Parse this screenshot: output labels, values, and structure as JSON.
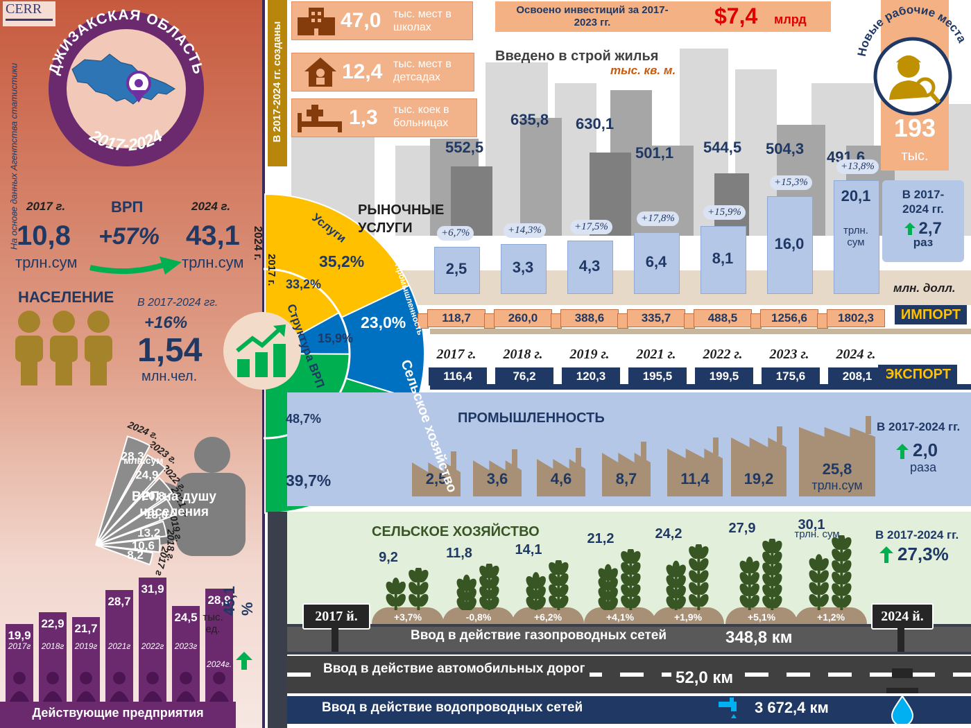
{
  "header": {
    "logo": "CERR",
    "region": "ДЖИЗАКСКАЯ ОБЛАСТЬ",
    "period": "2017-2024",
    "source_note": "На основе данных Агентства статистики"
  },
  "grp": {
    "label": "ВРП",
    "year_start": "2017 г.",
    "year_end": "2024 г.",
    "value_start": "10,8",
    "value_end": "43,1",
    "unit": "трлн.сум",
    "growth": "+57%"
  },
  "population": {
    "label": "НАСЕЛЕНИЕ",
    "period": "В 2017-2024 гг.",
    "growth": "+16%",
    "value": "1,54",
    "unit": "млн.чел."
  },
  "grp_per_capita": {
    "label": "ВРП на душу населения",
    "unit": "млн.сум",
    "items": [
      {
        "year": "2017 г",
        "value": "8,2"
      },
      {
        "year": "2018 г.",
        "value": "10,6"
      },
      {
        "year": "2019 г.",
        "value": "13,2"
      },
      {
        "year": "2021 г.",
        "value": "18,0"
      },
      {
        "year": "2022 г.",
        "value": "20,8"
      },
      {
        "year": "2023 г.",
        "value": "24,9"
      },
      {
        "year": "2024 г.",
        "value": "28,3"
      }
    ]
  },
  "enterprises": {
    "label": "Действующие предприятия",
    "unit": "тыс. ед.",
    "growth": "45,1 %",
    "items": [
      {
        "year": "2017г",
        "value": "19,9",
        "v": 19.9
      },
      {
        "year": "2018г",
        "value": "22,9",
        "v": 22.9
      },
      {
        "year": "2019г",
        "value": "21,7",
        "v": 21.7
      },
      {
        "year": "2021г",
        "value": "28,7",
        "v": 28.7
      },
      {
        "year": "2022г",
        "value": "31,9",
        "v": 31.9
      },
      {
        "year": "2023г",
        "value": "24,5",
        "v": 24.5
      },
      {
        "year": "2024г.",
        "value": "28,9",
        "v": 28.9
      }
    ]
  },
  "grp_structure": {
    "title": "Структура ВРП",
    "year_outer": "2024 г.",
    "year_inner": "2017 г.",
    "sectors": [
      {
        "name": "Услуги",
        "v2024": "35,2%",
        "v2017": "33,2%",
        "color": "#ffc000"
      },
      {
        "name": "Промышленность",
        "v2024": "23,0%",
        "v2017": "15,9%",
        "color": "#0070c0"
      },
      {
        "name": "Сельское хозяйство",
        "v2024": "39,7%",
        "v2017": "48,7%",
        "color": "#00b050"
      }
    ]
  },
  "created": {
    "vertical_label": "В 2017-2024 гг. созданы",
    "items": [
      {
        "icon": "school-icon",
        "value": "47,0",
        "text": "тыс. мест в школах"
      },
      {
        "icon": "kindergarten-icon",
        "value": "12,4",
        "text": "тыс. мест в детсадах"
      },
      {
        "icon": "hospital-bed-icon",
        "value": "1,3",
        "text": "тыс. коек в больницах"
      }
    ]
  },
  "investment": {
    "label": "Освоено инвестиций за 2017-2023 гг.",
    "value": "$7,4",
    "unit": "млрд"
  },
  "jobs": {
    "label": "Новые рабочие места",
    "value": "193",
    "unit": "тыс."
  },
  "housing": {
    "title": "Введено в строй жилья",
    "unit": "тыс. кв. м.",
    "values": [
      "552,5",
      "635,8",
      "630,1",
      "501,1",
      "544,5",
      "504,3",
      "491,6"
    ]
  },
  "chart_data": [
    {
      "type": "bar",
      "title": "РЫНОЧНЫЕ УСЛУГИ",
      "categories": [
        "2017 г.",
        "2018 г.",
        "2019 г.",
        "2021 г.",
        "2022 г.",
        "2023 г.",
        "2024 г."
      ],
      "values": [
        2.5,
        3.3,
        4.3,
        6.4,
        8.1,
        16.0,
        20.1
      ],
      "labels": [
        "2,5",
        "3,3",
        "4,3",
        "6,4",
        "8,1",
        "16,0",
        "20,1"
      ],
      "growth_labels": [
        "+6,7%",
        "+14,3%",
        "+17,5%",
        "+17,8%",
        "+15,9%",
        "+15,3%",
        "+13,8%"
      ],
      "unit": "трлн. сум",
      "summary_period": "В 2017-2024 гг.",
      "summary_value": "2,7",
      "summary_unit": "раз"
    },
    {
      "type": "table",
      "title": "ИМПОРТ",
      "unit": "млн. долл.",
      "categories": [
        "2017 г.",
        "2018 г.",
        "2019 г.",
        "2021 г.",
        "2022 г.",
        "2023 г.",
        "2024 г."
      ],
      "values": [
        118.7,
        260.0,
        388.6,
        335.7,
        488.5,
        1256.6,
        1802.3
      ],
      "labels": [
        "118,7",
        "260,0",
        "388,6",
        "335,7",
        "488,5",
        "1256,6",
        "1802,3"
      ]
    },
    {
      "type": "table",
      "title": "ЭКСПОРТ",
      "categories": [
        "2017 г.",
        "2018 г.",
        "2019 г.",
        "2021 г.",
        "2022 г.",
        "2023 г.",
        "2024 г."
      ],
      "values": [
        116.4,
        76.2,
        120.3,
        195.5,
        199.5,
        175.6,
        208.1
      ],
      "labels": [
        "116,4",
        "76,2",
        "120,3",
        "195,5",
        "199,5",
        "175,6",
        "208,1"
      ]
    },
    {
      "type": "bar",
      "title": "ПРОМЫШЛЕННОСТЬ",
      "categories": [
        "2017 г.",
        "2018 г.",
        "2019 г.",
        "2021 г.",
        "2022 г.",
        "2023 г.",
        "2024 г."
      ],
      "values": [
        2.5,
        3.6,
        4.6,
        8.7,
        11.4,
        19.2,
        25.8
      ],
      "labels": [
        "2,5",
        "3,6",
        "4,6",
        "8,7",
        "11,4",
        "19,2",
        "25,8"
      ],
      "unit": "трлн.сум",
      "summary_period": "В 2017-2024 гг.",
      "summary_value": "2,0",
      "summary_unit": "раза"
    },
    {
      "type": "bar",
      "title": "СЕЛЬСКОЕ ХОЗЯЙСТВО",
      "categories": [
        "2017 г.",
        "2018 г.",
        "2019 г.",
        "2021 г.",
        "2022 г.",
        "2023 г.",
        "2024 г."
      ],
      "values": [
        9.2,
        11.8,
        14.1,
        21.2,
        24.2,
        27.9,
        30.1
      ],
      "labels": [
        "9,2",
        "11,8",
        "14,1",
        "21,2",
        "24,2",
        "27,9",
        "30,1"
      ],
      "growth_labels": [
        "+3,7%",
        "-0,8%",
        "+6,2%",
        "+4,1%",
        "+1,9%",
        "+5,1%",
        "+1,2%"
      ],
      "unit": "трлн. сум",
      "summary_period": "В 2017-2024 гг.",
      "summary_value": "27,3%"
    }
  ],
  "timeline": {
    "start": "2017 й.",
    "end": "2024 й."
  },
  "infrastructure": [
    {
      "label": "Ввод в действие газопроводных сетей",
      "value": "348,8 км"
    },
    {
      "label": "Ввод в действие автомобильных дорог",
      "value": "52,0 км"
    },
    {
      "label": "Ввод в действие водопроводных сетей",
      "value": "3 672,4 км"
    }
  ],
  "colors": {
    "navy": "#1f3864",
    "services": "#ffc000",
    "industry": "#0070c0",
    "agriculture": "#00b050",
    "bar_blue": "#b4c7e7",
    "purple": "#6b2a6e",
    "red": "#e00000"
  }
}
